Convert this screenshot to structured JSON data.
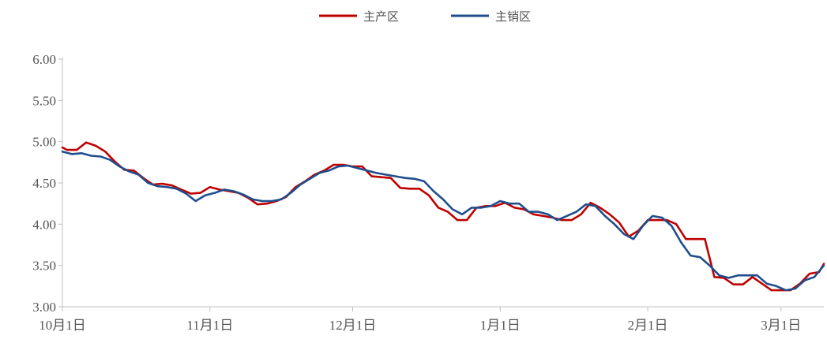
{
  "chart_data": {
    "type": "line",
    "title": "",
    "xlabel": "",
    "ylabel": "",
    "ylim": [
      3.0,
      6.0
    ],
    "yticks": [
      "3.00",
      "3.50",
      "4.00",
      "4.50",
      "5.00",
      "5.50",
      "6.00"
    ],
    "xticks": [
      {
        "label": "10月1日",
        "day": 0
      },
      {
        "label": "11月1日",
        "day": 31
      },
      {
        "label": "12月1日",
        "day": 61
      },
      {
        "label": "1月1日",
        "day": 92
      },
      {
        "label": "2月1日",
        "day": 123
      },
      {
        "label": "3月1日",
        "day": 151
      }
    ],
    "x_start": "10月1日",
    "x_end_day": 160,
    "grid": false,
    "legend": "top-center",
    "series": [
      {
        "name": "主产区",
        "color": "#c00000",
        "points": [
          [
            0,
            4.93
          ],
          [
            1,
            4.9
          ],
          [
            3,
            4.9
          ],
          [
            5,
            4.99
          ],
          [
            7,
            4.95
          ],
          [
            9,
            4.88
          ],
          [
            11,
            4.76
          ],
          [
            13,
            4.66
          ],
          [
            15,
            4.65
          ],
          [
            17,
            4.56
          ],
          [
            19,
            4.48
          ],
          [
            21,
            4.49
          ],
          [
            23,
            4.47
          ],
          [
            25,
            4.42
          ],
          [
            27,
            4.37
          ],
          [
            29,
            4.38
          ],
          [
            31,
            4.45
          ],
          [
            33,
            4.42
          ],
          [
            35,
            4.4
          ],
          [
            37,
            4.38
          ],
          [
            39,
            4.32
          ],
          [
            41,
            4.24
          ],
          [
            43,
            4.25
          ],
          [
            45,
            4.28
          ],
          [
            47,
            4.33
          ],
          [
            49,
            4.45
          ],
          [
            51,
            4.52
          ],
          [
            53,
            4.6
          ],
          [
            55,
            4.65
          ],
          [
            57,
            4.72
          ],
          [
            59,
            4.72
          ],
          [
            61,
            4.7
          ],
          [
            63,
            4.7
          ],
          [
            65,
            4.58
          ],
          [
            67,
            4.57
          ],
          [
            69,
            4.56
          ],
          [
            71,
            4.44
          ],
          [
            73,
            4.43
          ],
          [
            75,
            4.43
          ],
          [
            77,
            4.35
          ],
          [
            79,
            4.2
          ],
          [
            81,
            4.15
          ],
          [
            83,
            4.05
          ],
          [
            85,
            4.05
          ],
          [
            87,
            4.2
          ],
          [
            89,
            4.22
          ],
          [
            91,
            4.22
          ],
          [
            93,
            4.26
          ],
          [
            95,
            4.2
          ],
          [
            97,
            4.18
          ],
          [
            99,
            4.12
          ],
          [
            101,
            4.1
          ],
          [
            103,
            4.08
          ],
          [
            105,
            4.05
          ],
          [
            107,
            4.05
          ],
          [
            109,
            4.12
          ],
          [
            111,
            4.26
          ],
          [
            113,
            4.2
          ],
          [
            115,
            4.12
          ],
          [
            117,
            4.02
          ],
          [
            119,
            3.85
          ],
          [
            121,
            3.92
          ],
          [
            123,
            4.05
          ],
          [
            125,
            4.05
          ],
          [
            127,
            4.05
          ],
          [
            129,
            4.0
          ],
          [
            131,
            3.82
          ],
          [
            133,
            3.82
          ],
          [
            135,
            3.82
          ],
          [
            137,
            3.36
          ],
          [
            139,
            3.35
          ],
          [
            141,
            3.27
          ],
          [
            143,
            3.27
          ],
          [
            145,
            3.36
          ],
          [
            147,
            3.28
          ],
          [
            149,
            3.2
          ],
          [
            151,
            3.2
          ],
          [
            153,
            3.2
          ],
          [
            155,
            3.28
          ],
          [
            157,
            3.4
          ],
          [
            159,
            3.42
          ],
          [
            160,
            3.52
          ]
        ]
      },
      {
        "name": "主销区",
        "color": "#1f4e8c",
        "points": [
          [
            0,
            4.88
          ],
          [
            2,
            4.85
          ],
          [
            4,
            4.86
          ],
          [
            6,
            4.83
          ],
          [
            8,
            4.82
          ],
          [
            10,
            4.78
          ],
          [
            12,
            4.7
          ],
          [
            14,
            4.64
          ],
          [
            16,
            4.6
          ],
          [
            18,
            4.5
          ],
          [
            20,
            4.46
          ],
          [
            22,
            4.45
          ],
          [
            24,
            4.43
          ],
          [
            26,
            4.37
          ],
          [
            28,
            4.28
          ],
          [
            30,
            4.35
          ],
          [
            32,
            4.38
          ],
          [
            34,
            4.42
          ],
          [
            36,
            4.4
          ],
          [
            38,
            4.36
          ],
          [
            40,
            4.3
          ],
          [
            42,
            4.28
          ],
          [
            44,
            4.28
          ],
          [
            46,
            4.3
          ],
          [
            48,
            4.38
          ],
          [
            50,
            4.48
          ],
          [
            52,
            4.55
          ],
          [
            54,
            4.62
          ],
          [
            56,
            4.65
          ],
          [
            58,
            4.7
          ],
          [
            60,
            4.71
          ],
          [
            62,
            4.68
          ],
          [
            64,
            4.65
          ],
          [
            66,
            4.62
          ],
          [
            68,
            4.6
          ],
          [
            70,
            4.58
          ],
          [
            72,
            4.56
          ],
          [
            74,
            4.55
          ],
          [
            76,
            4.52
          ],
          [
            78,
            4.4
          ],
          [
            80,
            4.3
          ],
          [
            82,
            4.18
          ],
          [
            84,
            4.12
          ],
          [
            86,
            4.2
          ],
          [
            88,
            4.2
          ],
          [
            90,
            4.22
          ],
          [
            92,
            4.28
          ],
          [
            94,
            4.25
          ],
          [
            96,
            4.25
          ],
          [
            98,
            4.15
          ],
          [
            100,
            4.15
          ],
          [
            102,
            4.12
          ],
          [
            104,
            4.05
          ],
          [
            106,
            4.1
          ],
          [
            108,
            4.15
          ],
          [
            110,
            4.24
          ],
          [
            112,
            4.22
          ],
          [
            114,
            4.1
          ],
          [
            116,
            4.0
          ],
          [
            118,
            3.88
          ],
          [
            120,
            3.82
          ],
          [
            122,
            3.98
          ],
          [
            124,
            4.1
          ],
          [
            126,
            4.08
          ],
          [
            128,
            3.98
          ],
          [
            130,
            3.78
          ],
          [
            132,
            3.62
          ],
          [
            134,
            3.6
          ],
          [
            136,
            3.5
          ],
          [
            138,
            3.38
          ],
          [
            140,
            3.35
          ],
          [
            142,
            3.38
          ],
          [
            144,
            3.38
          ],
          [
            146,
            3.38
          ],
          [
            148,
            3.28
          ],
          [
            150,
            3.25
          ],
          [
            152,
            3.2
          ],
          [
            154,
            3.22
          ],
          [
            156,
            3.32
          ],
          [
            158,
            3.36
          ],
          [
            160,
            3.5
          ]
        ]
      }
    ]
  }
}
